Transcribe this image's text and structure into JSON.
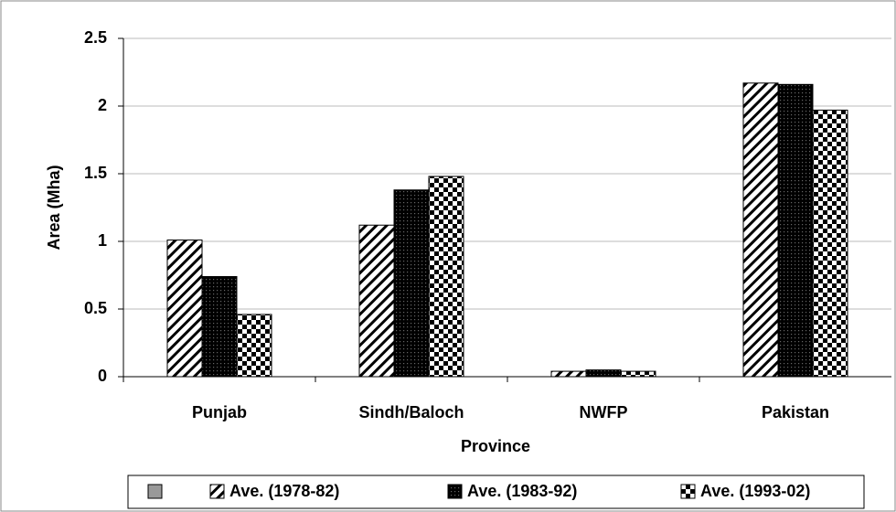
{
  "chart_data": {
    "type": "bar",
    "x_label": "Province",
    "y_label": "Area (Mha)",
    "categories": [
      "Punjab",
      "Sindh/Baloch",
      "NWFP",
      "Pakistan"
    ],
    "series": [
      {
        "name": "Ave. (1978-82)",
        "pattern": "hatch",
        "values": [
          1.01,
          1.12,
          0.04,
          2.17
        ]
      },
      {
        "name": "Ave. (1983-92)",
        "pattern": "dense",
        "values": [
          0.74,
          1.38,
          0.05,
          2.16
        ]
      },
      {
        "name": "Ave. (1993-02)",
        "pattern": "checker",
        "values": [
          0.46,
          1.48,
          0.04,
          1.97
        ]
      }
    ],
    "ylim": [
      0,
      2.5
    ],
    "yticks": [
      0,
      0.5,
      1,
      1.5,
      2,
      2.5
    ],
    "grid": true,
    "legend": "bottom"
  }
}
